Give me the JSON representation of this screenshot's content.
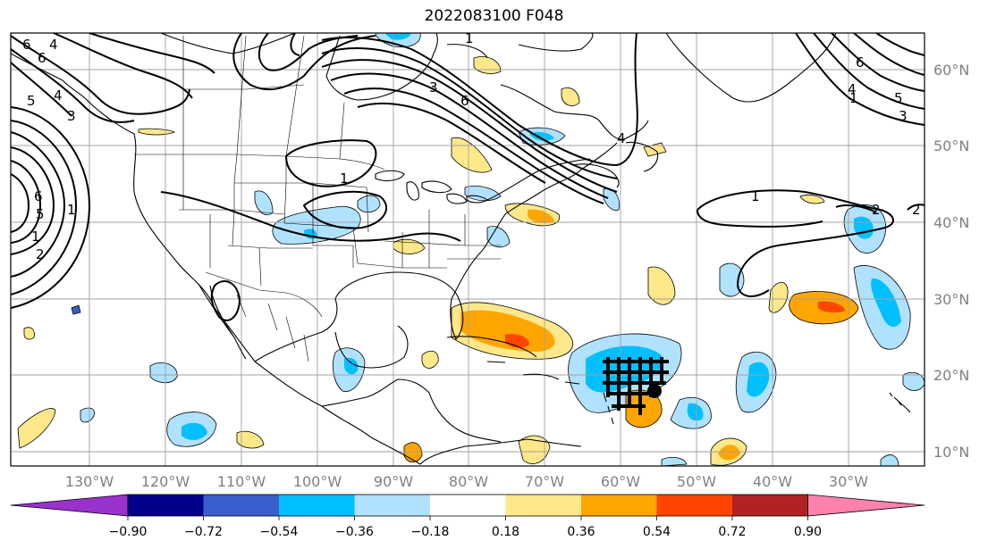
{
  "title": "2022083100 F048",
  "lat_labels": [
    "60°N",
    "50°N",
    "40°N",
    "30°N",
    "20°N",
    "10°N"
  ],
  "lon_labels": [
    "130°W",
    "120°W",
    "110°W",
    "100°W",
    "90°W",
    "80°W",
    "70°W",
    "60°W",
    "50°W",
    "40°W",
    "30°W"
  ],
  "colorbar": {
    "colors": [
      "#9932cc",
      "#00008b",
      "#3a5fcd",
      "#00bfff",
      "#b0e2ff",
      "#ffffff",
      "#ffe88a",
      "#ffa500",
      "#ff4500",
      "#b22222",
      "#ff82ab"
    ],
    "ticks": [
      "−0.90",
      "−0.72",
      "−0.54",
      "−0.36",
      "−0.18",
      "0.18",
      "0.36",
      "0.54",
      "0.72",
      "0.90"
    ]
  },
  "contour_labels": [
    "6",
    "4",
    "6",
    "5",
    "3",
    "6",
    "1",
    "3",
    "4",
    "1",
    "1",
    "6",
    "5",
    "4",
    "3",
    "2",
    "4",
    "6",
    "5",
    "2",
    "1",
    "1",
    "1",
    "2"
  ],
  "storm_marker": "filled-circle"
}
